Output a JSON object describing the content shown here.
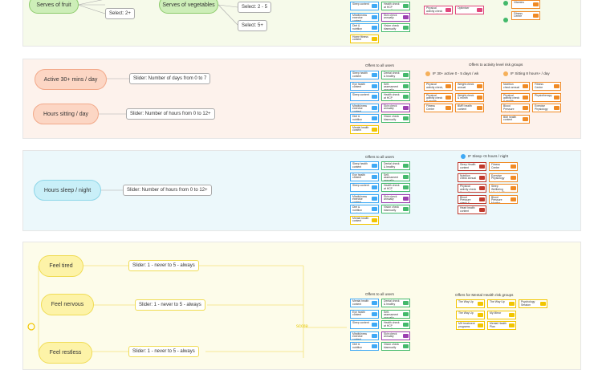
{
  "sections": [
    {
      "pills": [
        {
          "label": "Serves of fruit",
          "options": [
            "Select: 2+"
          ]
        },
        {
          "label": "Serves of vegetables",
          "options": [
            "Select: 2 - 5",
            "Select: 5+"
          ]
        }
      ],
      "groups": [
        {
          "cards": [
            {
              "label": "Sleep content",
              "color": "#3fa9f5"
            },
            {
              "label": "Mindfulness exercise content",
              "color": "#3fa9f5"
            },
            {
              "label": "Diet & nutrition content",
              "color": "#3fa9f5"
            },
            {
              "label": "Home fitness content",
              "color": "#f2c500"
            },
            {
              "label": "Health check at HCP annually",
              "color": "#43b96b"
            },
            {
              "label": "Skin check annually",
              "color": "#9b3fb0"
            },
            {
              "label": "Vision check biannually",
              "color": "#43b96b"
            }
          ]
        },
        {
          "cards": [
            {
              "label": "Physical activity check & rewards",
              "color": "#e0467c"
            },
            {
              "label": "Optimiser",
              "color": "#e0467c"
            }
          ]
        },
        {
          "cards": [
            {
              "label": "Vitamins",
              "color": "#f08a24"
            },
            {
              "label": "Fitness Centre",
              "color": "#f08a24"
            }
          ]
        }
      ]
    },
    {
      "pills": [
        {
          "label": "Active 30+ mins / day",
          "options": [
            "Slider: Number of days from 0 to 7"
          ]
        },
        {
          "label": "Hours sitting / day",
          "options": [
            "Slider: Number of hours from 0 to 12+"
          ]
        }
      ],
      "headings": [
        "Offers to all users",
        "Offers to activity level risk groups",
        "IF 30+ active 0 - 5 days / wk",
        "IF Sitting 8 hours+ / day"
      ],
      "groups": [
        {
          "cards": [
            {
              "label": "Sleep health content",
              "color": "#3fa9f5"
            },
            {
              "label": "Eye health content",
              "color": "#3fa9f5"
            },
            {
              "label": "Sleep content",
              "color": "#3fa9f5"
            },
            {
              "label": "Mindfulness exercise content",
              "color": "#3fa9f5"
            },
            {
              "label": "Diet & nutrition content",
              "color": "#3fa9f5"
            },
            {
              "label": "Mental health content",
              "color": "#f2c500"
            },
            {
              "label": "Dental check & healthy",
              "color": "#43b96b"
            },
            {
              "label": "Self-assessment annually",
              "color": "#43b96b"
            },
            {
              "label": "Health check at HCP annually",
              "color": "#43b96b"
            },
            {
              "label": "Skin check annually",
              "color": "#9b3fb0"
            },
            {
              "label": "Vision check biannually",
              "color": "#43b96b"
            }
          ]
        },
        {
          "cards": [
            {
              "label": "Physical activity check, annually",
              "color": "#f08a24"
            },
            {
              "label": "Physical activity check & month",
              "color": "#f08a24"
            },
            {
              "label": "Fitness Centre",
              "color": "#f08a24"
            },
            {
              "label": "Weight check annual",
              "color": "#f08a24"
            },
            {
              "label": "Weight check & month",
              "color": "#f08a24"
            },
            {
              "label": "BMR health content",
              "color": "#f08a24"
            }
          ]
        },
        {
          "cards": [
            {
              "label": "Nutrition check annual",
              "color": "#f08a24"
            },
            {
              "label": "Physical activity check & month",
              "color": "#f08a24"
            },
            {
              "label": "Blood Pressure check annual",
              "color": "#f08a24"
            },
            {
              "label": "BMI health content",
              "color": "#f08a24"
            },
            {
              "label": "Fitness Centre",
              "color": "#f08a24"
            },
            {
              "label": "Physiotherapy",
              "color": "#f08a24"
            },
            {
              "label": "Exercise Physiology",
              "color": "#f08a24"
            }
          ]
        }
      ]
    },
    {
      "pills": [
        {
          "label": "Hours sleep / night",
          "options": [
            "Slider: Number of hours from 0 to 12+"
          ]
        }
      ],
      "headings": [
        "Offers to all users",
        "IF Sleep <6 hours / night"
      ],
      "groups": [
        {
          "cards": [
            {
              "label": "Sleep health content",
              "color": "#3fa9f5"
            },
            {
              "label": "Eye health content",
              "color": "#3fa9f5"
            },
            {
              "label": "Sleep content",
              "color": "#3fa9f5"
            },
            {
              "label": "Mindfulness exercise content",
              "color": "#3fa9f5"
            },
            {
              "label": "Diet & nutrition content",
              "color": "#3fa9f5"
            },
            {
              "label": "Mental health content",
              "color": "#f2c500"
            },
            {
              "label": "Dental check & healthy",
              "color": "#43b96b"
            },
            {
              "label": "Self-assessment annually",
              "color": "#43b96b"
            },
            {
              "label": "Health check at HCP annually",
              "color": "#43b96b"
            },
            {
              "label": "Skin check annually",
              "color": "#9b3fb0"
            },
            {
              "label": "Vision check biannually",
              "color": "#43b96b"
            }
          ]
        },
        {
          "cards": [
            {
              "label": "Sleep Health content",
              "color": "#c0392b"
            },
            {
              "label": "Nutrition check annual",
              "color": "#c0392b"
            },
            {
              "label": "Physical activity check & month",
              "color": "#c0392b"
            },
            {
              "label": "Blood Pressure check & month",
              "color": "#c0392b"
            },
            {
              "label": "Heart health content",
              "color": "#c0392b"
            },
            {
              "label": "Fitness Centre",
              "color": "#f08a24"
            },
            {
              "label": "Exercise Physiology",
              "color": "#f08a24"
            },
            {
              "label": "Sleep Wellbeing Lifestyle Plan",
              "color": "#f08a24"
            },
            {
              "label": "Blood Pressure Monitor",
              "color": "#f08a24"
            }
          ]
        }
      ]
    },
    {
      "pills": [
        {
          "label": "Feel tired",
          "options": [
            "Slider: 1 - never to 5 - always"
          ]
        },
        {
          "label": "Feel nervous",
          "options": [
            "Slider: 1 - never to 5 - always"
          ]
        },
        {
          "label": "Feel restless",
          "options": [
            "Slider: 1 - never to 5 - always"
          ]
        }
      ],
      "score": "score",
      "headings": [
        "Offers to all users",
        "Offers for Mental Health risk groups"
      ],
      "groups": [
        {
          "cards": [
            {
              "label": "Mental health content",
              "color": "#3fa9f5"
            },
            {
              "label": "Eye health content",
              "color": "#3fa9f5"
            },
            {
              "label": "Sleep content",
              "color": "#3fa9f5"
            },
            {
              "label": "Mindfulness exercise content",
              "color": "#3fa9f5"
            },
            {
              "label": "Diet & nutrition content",
              "color": "#3fa9f5"
            },
            {
              "label": "Dental check & healthy",
              "color": "#43b96b"
            },
            {
              "label": "Self-assessment annually",
              "color": "#43b96b"
            },
            {
              "label": "Health check at HCP annually",
              "color": "#43b96b"
            },
            {
              "label": "Skin check annually",
              "color": "#9b3fb0"
            },
            {
              "label": "Vision check biannually",
              "color": "#43b96b"
            }
          ]
        },
        {
          "cards": [
            {
              "label": "The Way Up",
              "color": "#f2c500"
            },
            {
              "label": "The Way Up",
              "color": "#f2c500"
            },
            {
              "label": "MH treatment programs",
              "color": "#f2c500"
            },
            {
              "label": "The Way Up",
              "color": "#f2c500"
            },
            {
              "label": "My Mirror",
              "color": "#f2c500"
            },
            {
              "label": "Mental Health Plan",
              "color": "#f2c500"
            },
            {
              "label": "Psychology Session",
              "color": "#f2c500"
            }
          ]
        }
      ]
    }
  ]
}
